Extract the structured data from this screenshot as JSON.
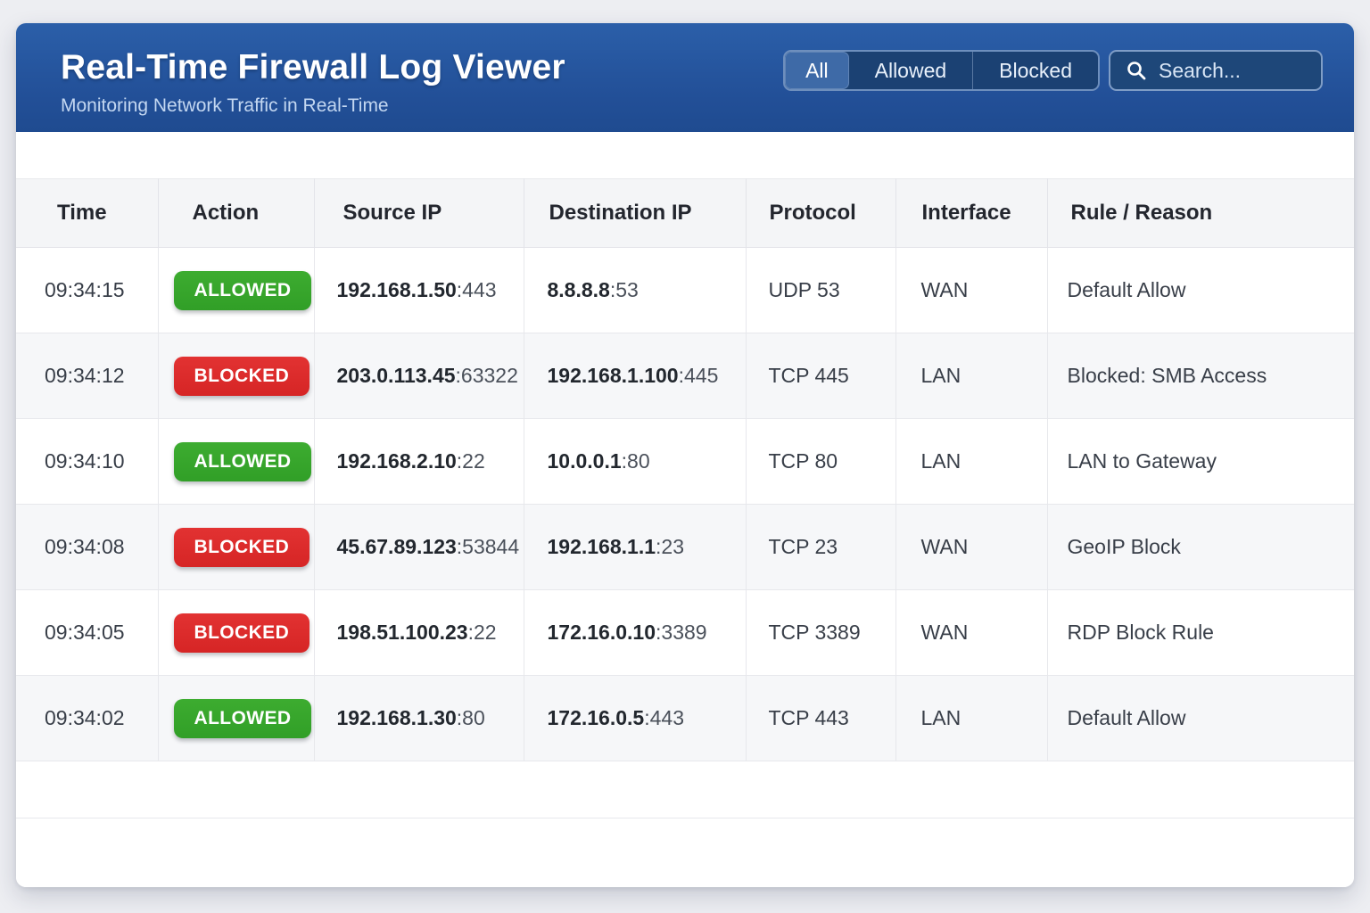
{
  "app": {
    "title": "Real-Time Firewall Log Viewer",
    "subtitle": "Monitoring Network Traffic in Real-Time"
  },
  "filters": {
    "items": [
      {
        "label": "All",
        "active": true
      },
      {
        "label": "Allowed",
        "active": false
      },
      {
        "label": "Blocked",
        "active": false
      }
    ]
  },
  "search": {
    "placeholder": "Search...",
    "value": "",
    "icon": "search-icon"
  },
  "colors": {
    "header_blue": "#2456a0",
    "allowed_green": "#36a42c",
    "blocked_red": "#dd2b2b",
    "page_background": "#edeef2"
  },
  "table": {
    "columns": [
      "Time",
      "Action",
      "Source IP",
      "Destination IP",
      "Protocol",
      "Interface",
      "Rule / Reason"
    ],
    "rows": [
      {
        "time": "09:34:15",
        "action": "ALLOWED",
        "source_ip": "192.168.1.50",
        "source_port": ":443",
        "dest_ip": "8.8.8.8",
        "dest_port": ":53",
        "protocol": "UDP 53",
        "interface": "WAN",
        "rule": "Default Allow"
      },
      {
        "time": "09:34:12",
        "action": "BLOCKED",
        "source_ip": "203.0.113.45",
        "source_port": ":63322",
        "dest_ip": "192.168.1.100",
        "dest_port": ":445",
        "protocol": "TCP 445",
        "interface": "LAN",
        "rule": "Blocked: SMB Access"
      },
      {
        "time": "09:34:10",
        "action": "ALLOWED",
        "source_ip": "192.168.2.10",
        "source_port": ":22",
        "dest_ip": "10.0.0.1",
        "dest_port": ":80",
        "protocol": "TCP 80",
        "interface": "LAN",
        "rule": "LAN to Gateway"
      },
      {
        "time": "09:34:08",
        "action": "BLOCKED",
        "source_ip": "45.67.89.123",
        "source_port": ":53844",
        "dest_ip": "192.168.1.1",
        "dest_port": ":23",
        "protocol": "TCP 23",
        "interface": "WAN",
        "rule": "GeoIP Block"
      },
      {
        "time": "09:34:05",
        "action": "BLOCKED",
        "source_ip": "198.51.100.23",
        "source_port": ":22",
        "dest_ip": "172.16.0.10",
        "dest_port": ":3389",
        "protocol": "TCP 3389",
        "interface": "WAN",
        "rule": "RDP Block Rule"
      },
      {
        "time": "09:34:02",
        "action": "ALLOWED",
        "source_ip": "192.168.1.30",
        "source_port": ":80",
        "dest_ip": "172.16.0.5",
        "dest_port": ":443",
        "protocol": "TCP 443",
        "interface": "LAN",
        "rule": "Default Allow"
      }
    ]
  }
}
